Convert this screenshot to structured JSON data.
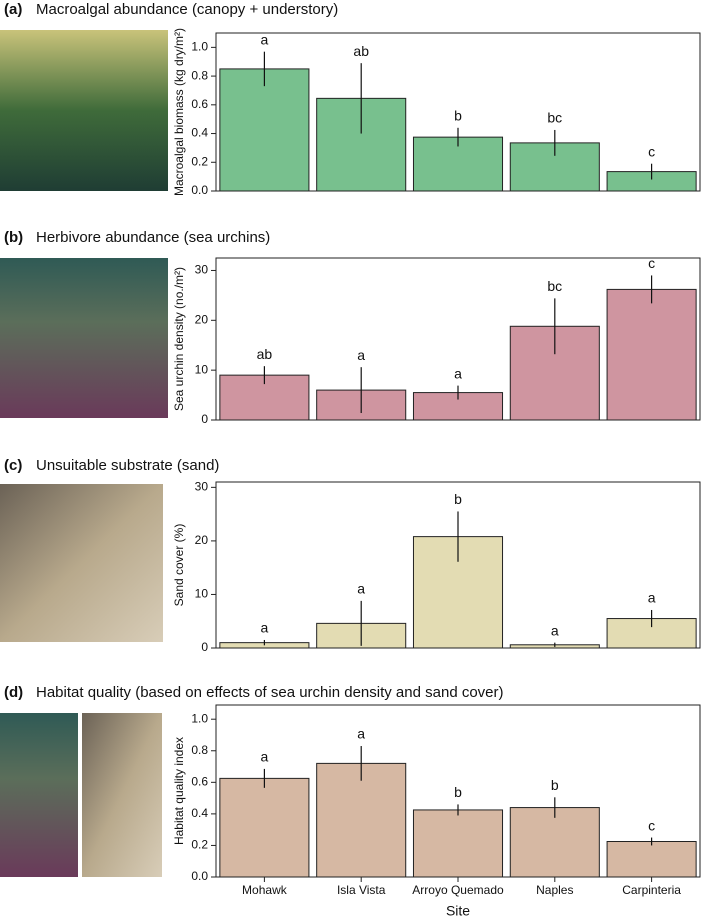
{
  "chart_data": [
    {
      "type": "bar",
      "panel": "(a)",
      "title": "Macroalgal abundance (canopy + understory)",
      "ylabel": "Macroalgal biomass (kg dry/m²)",
      "categories": [
        null,
        null,
        null,
        null,
        null
      ],
      "values": [
        0.85,
        0.645,
        0.375,
        0.335,
        0.135
      ],
      "errors": [
        0.12,
        0.245,
        0.065,
        0.09,
        0.055
      ],
      "annotations": [
        "a",
        "ab",
        "b",
        "bc",
        "c"
      ],
      "color": "#78c08e",
      "ylim": [
        0,
        1.1
      ],
      "yticks": [
        {
          "value": 0,
          "label": "0.0"
        },
        0.2,
        0.4,
        0.6,
        0.8,
        {
          "value": 1,
          "label": "1.0"
        }
      ]
    },
    {
      "type": "bar",
      "panel": "(b)",
      "title": "Herbivore abundance (sea urchins)",
      "ylabel": "Sea urchin density (no./m²)",
      "categories": [
        null,
        null,
        null,
        null,
        null
      ],
      "values": [
        9,
        6,
        5.5,
        18.8,
        26.2
      ],
      "errors": [
        1.8,
        4.6,
        1.4,
        5.6,
        2.8
      ],
      "annotations": [
        "ab",
        "a",
        "a",
        "bc",
        "c"
      ],
      "color": "#cf95a0",
      "ylim": [
        0,
        32.5
      ],
      "yticks": [
        0,
        10,
        20,
        30
      ]
    },
    {
      "type": "bar",
      "panel": "(c)",
      "title": "Unsuitable substrate (sand)",
      "ylabel": "Sand cover (%)",
      "categories": [
        null,
        null,
        null,
        null,
        null
      ],
      "values": [
        1,
        4.6,
        20.8,
        0.6,
        5.5
      ],
      "errors": [
        0.5,
        4.2,
        4.7,
        0.4,
        1.6
      ],
      "annotations": [
        "a",
        "a",
        "b",
        "a",
        "a"
      ],
      "color": "#e3dcb3",
      "ylim": [
        0,
        31
      ],
      "yticks": [
        0,
        10,
        20,
        30
      ]
    },
    {
      "type": "bar",
      "panel": "(d)",
      "title": "Habitat quality (based on effects of sea urchin density and sand cover)",
      "ylabel": "Habitat quality index",
      "xlabel": "Site",
      "categories": [
        "Mohawk",
        "Isla Vista",
        "Arroyo Quemado",
        "Naples",
        "Carpinteria"
      ],
      "values": [
        0.625,
        0.72,
        0.425,
        0.44,
        0.225
      ],
      "errors": [
        0.06,
        0.11,
        0.035,
        0.065,
        0.025
      ],
      "annotations": [
        "a",
        "a",
        "b",
        "b",
        "c"
      ],
      "color": "#d6b8a3",
      "ylim": [
        0,
        1.09
      ],
      "yticks": [
        {
          "value": 0,
          "label": "0.0"
        },
        0.2,
        0.4,
        0.6,
        0.8,
        {
          "value": 1,
          "label": "1.0"
        }
      ]
    }
  ]
}
